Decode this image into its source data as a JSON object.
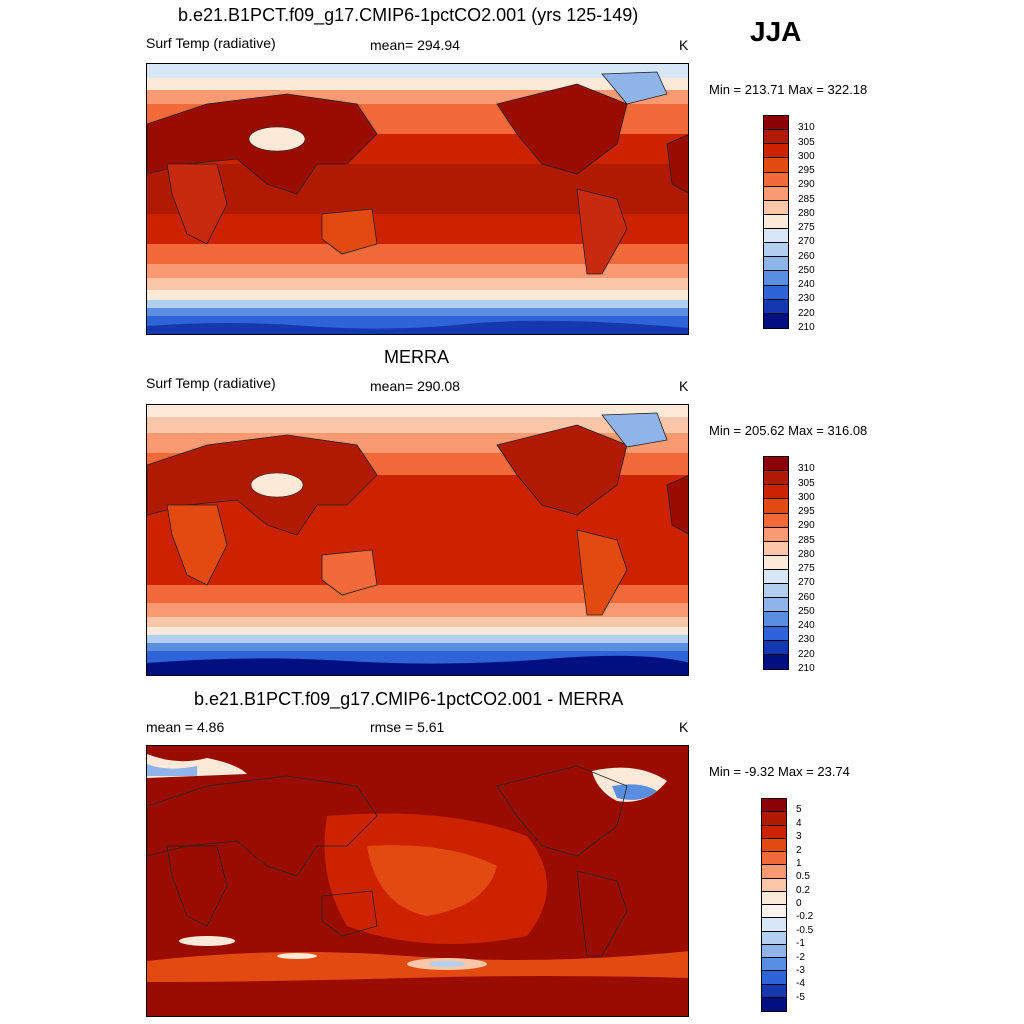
{
  "season": "JJA",
  "panels": [
    {
      "title": "b.e21.B1PCT.f09_g17.CMIP6-1pctCO2.001 (yrs 125-149)",
      "left_label": "Surf Temp (radiative)",
      "center_label": "mean= 294.94",
      "units": "K",
      "minmax": "Min = 213.71 Max = 322.18",
      "colorbar_labels": [
        "310",
        "305",
        "300",
        "295",
        "290",
        "285",
        "280",
        "275",
        "270",
        "260",
        "250",
        "240",
        "230",
        "220",
        "210"
      ],
      "colorbar_colors": [
        "#8b0000",
        "#b01a00",
        "#cc2200",
        "#e34a12",
        "#f26a3a",
        "#f99a72",
        "#fcc6a8",
        "#fde9d8",
        "#d7e7f6",
        "#b3cff0",
        "#8fb4ea",
        "#5a8ee0",
        "#2f64d8",
        "#1538b0",
        "#001080"
      ]
    },
    {
      "title": "MERRA",
      "left_label": "Surf Temp (radiative)",
      "center_label": "mean= 290.08",
      "units": "K",
      "minmax": "Min = 205.62 Max = 316.08",
      "colorbar_labels": [
        "310",
        "305",
        "300",
        "295",
        "290",
        "285",
        "280",
        "275",
        "270",
        "260",
        "250",
        "240",
        "230",
        "220",
        "210"
      ],
      "colorbar_colors": [
        "#8b0000",
        "#b01a00",
        "#cc2200",
        "#e34a12",
        "#f26a3a",
        "#f99a72",
        "#fcc6a8",
        "#fde9d8",
        "#d7e7f6",
        "#b3cff0",
        "#8fb4ea",
        "#5a8ee0",
        "#2f64d8",
        "#1538b0",
        "#001080"
      ]
    },
    {
      "title": "b.e21.B1PCT.f09_g17.CMIP6-1pctCO2.001 - MERRA",
      "left_label": "mean =   4.86",
      "center_label": "rmse =   5.61",
      "units": "K",
      "minmax": "Min =  -9.32 Max =  23.74",
      "colorbar_labels": [
        "5",
        "4",
        "3",
        "2",
        "1",
        "0.5",
        "0.2",
        "0",
        "-0.2",
        "-0.5",
        "-1",
        "-2",
        "-3",
        "-4",
        "-5"
      ],
      "colorbar_colors": [
        "#8b0000",
        "#b01a00",
        "#cc2200",
        "#e34a12",
        "#f26a3a",
        "#f99a72",
        "#fcc6a8",
        "#fde9d8",
        "#fbf4ee",
        "#d7e7f6",
        "#b3cff0",
        "#8fb4ea",
        "#5a8ee0",
        "#2f64d8",
        "#1538b0",
        "#001080"
      ]
    }
  ]
}
